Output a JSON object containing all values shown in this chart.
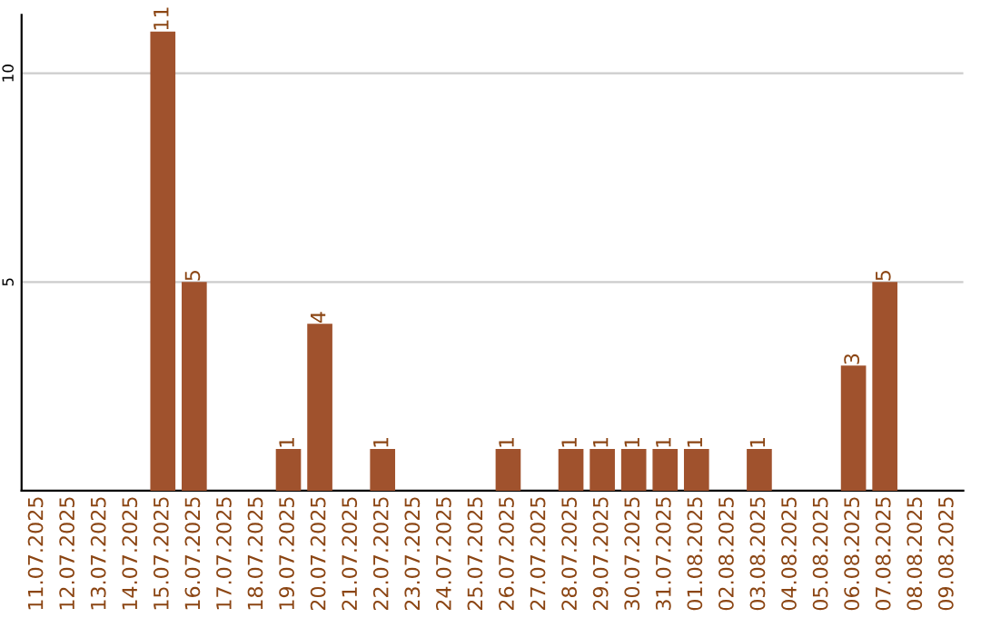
{
  "chart_data": {
    "type": "bar",
    "categories": [
      "11.07.2025",
      "12.07.2025",
      "13.07.2025",
      "14.07.2025",
      "15.07.2025",
      "16.07.2025",
      "17.07.2025",
      "18.07.2025",
      "19.07.2025",
      "20.07.2025",
      "21.07.2025",
      "22.07.2025",
      "23.07.2025",
      "24.07.2025",
      "25.07.2025",
      "26.07.2025",
      "27.07.2025",
      "28.07.2025",
      "29.07.2025",
      "30.07.2025",
      "31.07.2025",
      "01.08.2025",
      "02.08.2025",
      "03.08.2025",
      "04.08.2025",
      "05.08.2025",
      "06.08.2025",
      "07.08.2025",
      "08.08.2025",
      "09.08.2025"
    ],
    "values": [
      0,
      0,
      0,
      0,
      11,
      5,
      0,
      0,
      1,
      4,
      0,
      1,
      0,
      0,
      0,
      1,
      0,
      1,
      1,
      1,
      1,
      1,
      0,
      1,
      0,
      0,
      3,
      5,
      0,
      0
    ],
    "value_labels": [
      null,
      null,
      null,
      null,
      "11",
      "5",
      null,
      null,
      "1",
      "4",
      null,
      "1",
      null,
      null,
      null,
      "1",
      null,
      "1",
      "1",
      "1",
      "1",
      "1",
      null,
      "1",
      null,
      null,
      "3",
      "5",
      null,
      null
    ],
    "color": "#a0522d",
    "ylim": [
      0,
      11.4
    ],
    "yticks": [
      5,
      10
    ],
    "grid": "y"
  }
}
